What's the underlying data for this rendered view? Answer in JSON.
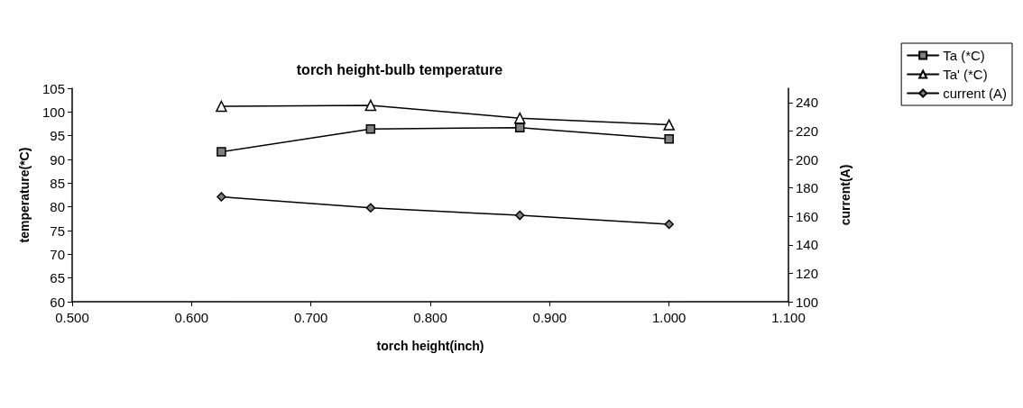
{
  "chart_data": {
    "type": "line",
    "title": "torch height-bulb temperature",
    "xlabel": "torch height(inch)",
    "ylabel": "temperature(*C)",
    "y2label": "current(A)",
    "x": [
      0.625,
      0.75,
      0.875,
      1.0
    ],
    "series": [
      {
        "name": "Ta (*C)",
        "color": "#000000",
        "marker": "square",
        "values": [
          91.6,
          96.4,
          96.7,
          94.3
        ]
      },
      {
        "name": "Ta' (*C)",
        "color": "#000000",
        "marker": "triangle",
        "values": [
          101.2,
          101.4,
          98.7,
          97.3
        ]
      },
      {
        "name": "current (A)",
        "color": "#000000",
        "marker": "diamond",
        "axis": "y2",
        "values": [
          173.7,
          166.0,
          160.7,
          154.4
        ]
      }
    ],
    "xlim": [
      0.5,
      1.1
    ],
    "xticks": [
      {
        "value": 0.5,
        "label": "0.500"
      },
      {
        "value": 0.6,
        "label": "0.600"
      },
      {
        "value": 0.7,
        "label": "0.700"
      },
      {
        "value": 0.8,
        "label": "0.800"
      },
      {
        "value": 0.9,
        "label": "0.900"
      },
      {
        "value": 1.0,
        "label": "1.000"
      },
      {
        "value": 1.1,
        "label": "1.100"
      }
    ],
    "ylim": [
      60,
      105
    ],
    "yticks": [
      60,
      65,
      70,
      75,
      80,
      85,
      90,
      95,
      100,
      105
    ],
    "y2lim": [
      100,
      250
    ],
    "y2ticks": [
      100,
      120,
      140,
      160,
      180,
      200,
      220,
      240
    ],
    "grid": false,
    "legend": "top right",
    "line_style": "solid"
  }
}
